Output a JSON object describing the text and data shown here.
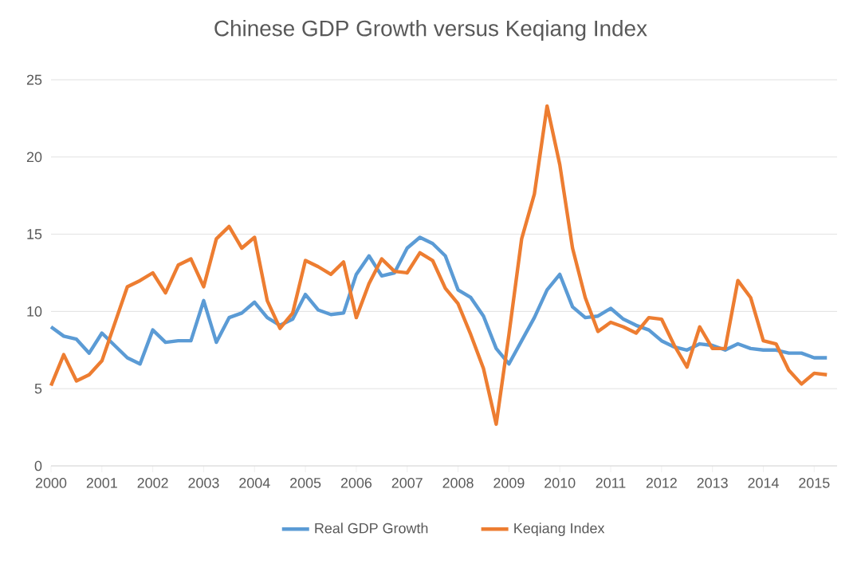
{
  "chart_data": {
    "type": "line",
    "title": "Chinese GDP Growth versus Keqiang Index",
    "x": [
      2000,
      2000.25,
      2000.5,
      2000.75,
      2001,
      2001.25,
      2001.5,
      2001.75,
      2002,
      2002.25,
      2002.5,
      2002.75,
      2003,
      2003.25,
      2003.5,
      2003.75,
      2004,
      2004.25,
      2004.5,
      2004.75,
      2005,
      2005.25,
      2005.5,
      2005.75,
      2006,
      2006.25,
      2006.5,
      2006.75,
      2007,
      2007.25,
      2007.5,
      2007.75,
      2008,
      2008.25,
      2008.5,
      2008.75,
      2009,
      2009.25,
      2009.5,
      2009.75,
      2010,
      2010.25,
      2010.5,
      2010.75,
      2011,
      2011.25,
      2011.5,
      2011.75,
      2012,
      2012.25,
      2012.5,
      2012.75,
      2013,
      2013.25,
      2013.5,
      2013.75,
      2014,
      2014.25,
      2014.5,
      2014.75,
      2015,
      2015.25
    ],
    "series": [
      {
        "name": "Real GDP Growth",
        "color": "#5b9bd5",
        "values": [
          9.0,
          8.4,
          8.2,
          7.3,
          8.6,
          7.8,
          7.0,
          6.6,
          8.8,
          8.0,
          8.1,
          8.1,
          10.7,
          8.0,
          9.6,
          9.9,
          10.6,
          9.6,
          9.1,
          9.5,
          11.1,
          10.1,
          9.8,
          9.9,
          12.4,
          13.6,
          12.3,
          12.5,
          14.1,
          14.8,
          14.4,
          13.6,
          11.4,
          10.9,
          9.7,
          7.6,
          6.6,
          8.1,
          9.6,
          11.4,
          12.4,
          10.3,
          9.6,
          9.7,
          10.2,
          9.5,
          9.1,
          8.8,
          8.1,
          7.7,
          7.5,
          7.9,
          7.8,
          7.5,
          7.9,
          7.6,
          7.5,
          7.5,
          7.3,
          7.3,
          7.0,
          7.0
        ]
      },
      {
        "name": "Keqiang Index",
        "color": "#ed7d31",
        "values": [
          5.2,
          7.2,
          5.5,
          5.9,
          6.8,
          9.2,
          11.6,
          12.0,
          12.5,
          11.2,
          13.0,
          13.4,
          11.6,
          14.7,
          15.5,
          14.1,
          14.8,
          10.7,
          8.9,
          9.9,
          13.3,
          12.9,
          12.4,
          13.2,
          9.6,
          11.8,
          13.4,
          12.6,
          12.5,
          13.8,
          13.3,
          11.5,
          10.5,
          8.5,
          6.3,
          2.7,
          8.5,
          14.7,
          17.6,
          23.3,
          19.5,
          14.1,
          10.9,
          8.7,
          9.3,
          9.0,
          8.6,
          9.6,
          9.5,
          7.8,
          6.4,
          9.0,
          7.6,
          7.6,
          12.0,
          10.9,
          8.1,
          7.9,
          6.2,
          5.3,
          6.0,
          5.9
        ]
      }
    ],
    "xlim": [
      2000,
      2015.45
    ],
    "xticks": [
      2000,
      2001,
      2002,
      2003,
      2004,
      2005,
      2006,
      2007,
      2008,
      2009,
      2010,
      2011,
      2012,
      2013,
      2014,
      2015
    ],
    "ylim": [
      0,
      25
    ],
    "yticks": [
      0,
      5,
      10,
      15,
      20,
      25
    ],
    "grid": "y",
    "legend": "bottom",
    "marker": "none",
    "line_style": "solid"
  }
}
